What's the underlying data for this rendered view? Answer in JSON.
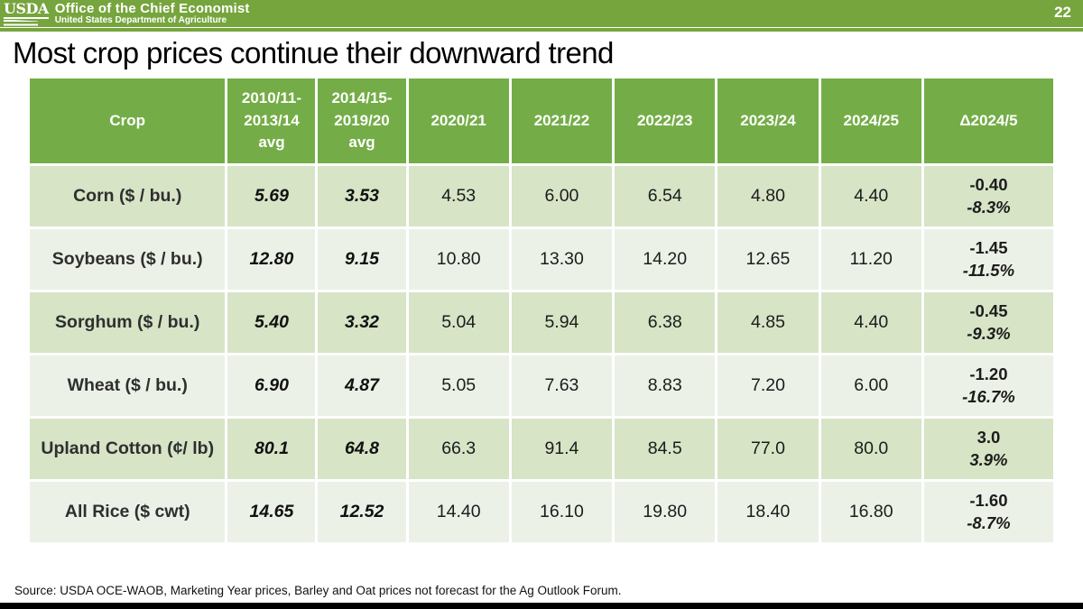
{
  "banner": {
    "logo_text": "USDA",
    "title": "Office of the Chief Economist",
    "subtitle": "United States Department of Agriculture",
    "page_number": "22"
  },
  "slide": {
    "title": "Most crop prices continue their downward trend",
    "source_note": "Source: USDA OCE-WAOB, Marketing Year prices, Barley and Oat prices not forecast for the Ag Outlook Forum."
  },
  "colors": {
    "banner_green": "#76a53d",
    "table_header_green": "#74ad47",
    "row_tint_dark": "#d7e4c6",
    "row_tint_light": "#ecf1e7",
    "footer_bar_black": "#000000"
  },
  "table": {
    "header": [
      "Crop",
      "2010/11-\n2013/14\navg",
      "2014/15-\n2019/20\navg",
      "2020/21",
      "2021/22",
      "2022/23",
      "2023/24",
      "2024/25",
      "Δ2024/5"
    ],
    "rows": [
      {
        "crop": "Corn ($ / bu.)",
        "values": [
          "5.69",
          "3.53",
          "4.53",
          "6.00",
          "6.54",
          "4.80",
          "4.40"
        ],
        "delta_change": "-0.40",
        "delta_percent": "-8.3%"
      },
      {
        "crop": "Soybeans ($ / bu.)",
        "values": [
          "12.80",
          "9.15",
          "10.80",
          "13.30",
          "14.20",
          "12.65",
          "11.20"
        ],
        "delta_change": "-1.45",
        "delta_percent": "-11.5%"
      },
      {
        "crop": "Sorghum ($ / bu.)",
        "values": [
          "5.40",
          "3.32",
          "5.04",
          "5.94",
          "6.38",
          "4.85",
          "4.40"
        ],
        "delta_change": "-0.45",
        "delta_percent": "-9.3%"
      },
      {
        "crop": "Wheat ($ / bu.)",
        "values": [
          "6.90",
          "4.87",
          "5.05",
          "7.63",
          "8.83",
          "7.20",
          "6.00"
        ],
        "delta_change": "-1.20",
        "delta_percent": "-16.7%"
      },
      {
        "crop": "Upland Cotton (¢/ lb)",
        "values": [
          "80.1",
          "64.8",
          "66.3",
          "91.4",
          "84.5",
          "77.0",
          "80.0"
        ],
        "delta_change": "3.0",
        "delta_percent": "3.9%"
      },
      {
        "crop": "All Rice ($ cwt)",
        "values": [
          "14.65",
          "12.52",
          "14.40",
          "16.10",
          "19.80",
          "18.40",
          "16.80"
        ],
        "delta_change": "-1.60",
        "delta_percent": "-8.7%"
      }
    ]
  },
  "chart_data": {
    "type": "table",
    "title": "Most crop prices continue their downward trend",
    "columns": [
      "Crop",
      "2010/11-2013/14 avg",
      "2014/15-2019/20 avg",
      "2020/21",
      "2021/22",
      "2022/23",
      "2023/24",
      "2024/25",
      "Δ2024/5 change",
      "Δ2024/5 percent"
    ],
    "rows": [
      [
        "Corn ($ / bu.)",
        5.69,
        3.53,
        4.53,
        6.0,
        6.54,
        4.8,
        4.4,
        -0.4,
        "-8.3%"
      ],
      [
        "Soybeans ($ / bu.)",
        12.8,
        9.15,
        10.8,
        13.3,
        14.2,
        12.65,
        11.2,
        -1.45,
        "-11.5%"
      ],
      [
        "Sorghum ($ / bu.)",
        5.4,
        3.32,
        5.04,
        5.94,
        6.38,
        4.85,
        4.4,
        -0.45,
        "-9.3%"
      ],
      [
        "Wheat ($ / bu.)",
        6.9,
        4.87,
        5.05,
        7.63,
        8.83,
        7.2,
        6.0,
        -1.2,
        "-16.7%"
      ],
      [
        "Upland Cotton (¢/ lb)",
        80.1,
        64.8,
        66.3,
        91.4,
        84.5,
        77.0,
        80.0,
        3.0,
        "3.9%"
      ],
      [
        "All Rice ($ cwt)",
        14.65,
        12.52,
        14.4,
        16.1,
        19.8,
        18.4,
        16.8,
        -1.6,
        "-8.7%"
      ]
    ]
  }
}
